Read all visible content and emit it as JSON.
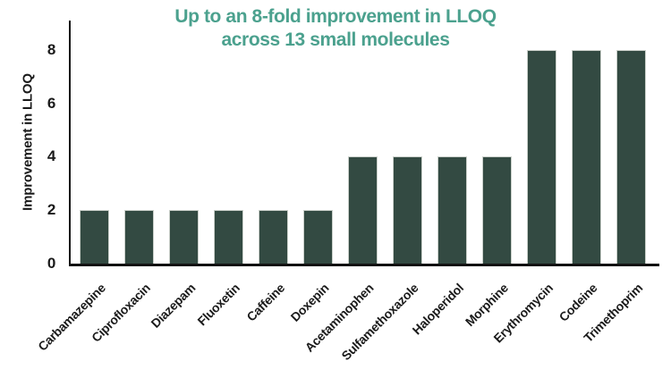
{
  "chart_data": {
    "type": "bar",
    "title": "Up to an 8-fold improvement in LLOQ across 13 small molecules",
    "title_line1": "Up to an 8-fold improvement in LLOQ",
    "title_line2": "across 13 small molecules",
    "ylabel": "Improvement in LLOQ",
    "xlabel": "",
    "categories": [
      "Carbamazepine",
      "Ciprofloxacin",
      "Diazepam",
      "Fluoxetin",
      "Caffeine",
      "Doxepin",
      "Acetaminophen",
      "Sulfamethoxazole",
      "Haloperidol",
      "Morphine",
      "Erythromycin",
      "Codeine",
      "Trimethoprim"
    ],
    "values": [
      2,
      2,
      2,
      2,
      2,
      2,
      4,
      4,
      4,
      4,
      8,
      8,
      8
    ],
    "yticks": [
      0,
      2,
      4,
      6,
      8
    ],
    "ylim": [
      0,
      9.1
    ],
    "grid": false,
    "legend_position": "none",
    "bar_color": "#334a42",
    "bar_edge_color": "#c9cfc9",
    "title_color": "#4ba18e",
    "axis_color": "#111111",
    "tick_label_color": "#1a1a1a"
  }
}
